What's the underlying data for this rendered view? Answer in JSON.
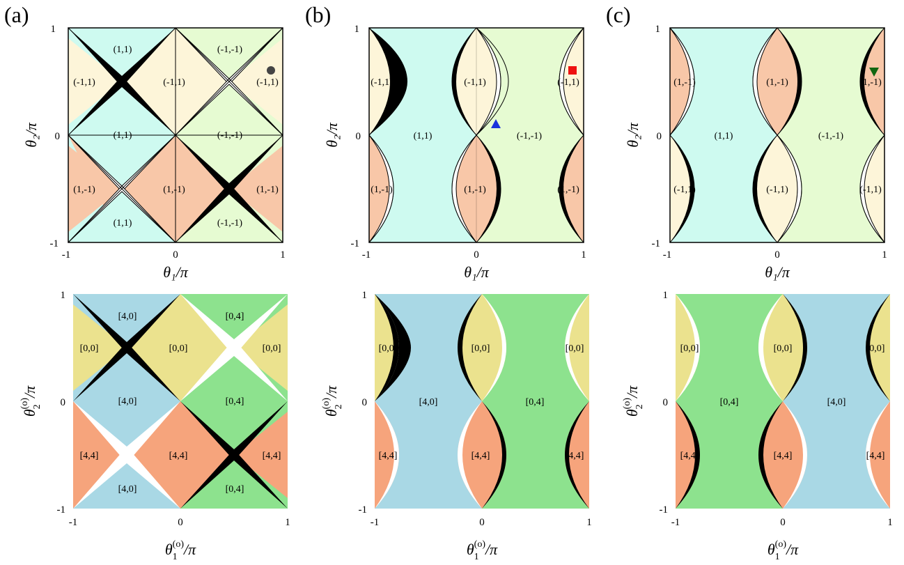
{
  "colors": {
    "cyan": "#cefaf0",
    "green_light": "#e6fbd2",
    "yellow_light": "#fdf5d9",
    "salmon_light": "#f8c7a8",
    "blue": "#a9d8e5",
    "green": "#8de28e",
    "yellow": "#ebe28e",
    "salmon": "#f6a47c",
    "black": "#000000",
    "white": "#ffffff"
  },
  "panel_letters": [
    "(a)",
    "(b)",
    "(c)"
  ],
  "ticks": {
    "neg": "-1",
    "zero": "0",
    "pos": "1"
  },
  "axis_labels": {
    "top_x": "θ₁/π",
    "top_y": "θ₂/π",
    "bottom_x_base": "θ",
    "bottom_x_sub": "1",
    "bottom_y_base": "θ",
    "bottom_y_sub": "2",
    "sup": "(o)",
    "over_pi": "/π"
  },
  "top_labels": {
    "a": {
      "row1_mid": "(1,1)",
      "row1_right": "(-1,-1)",
      "row2_left": "(-1,1)",
      "row2_mid": "(-1,1)",
      "row2_right": "(-1,1)",
      "row3_mid": "(1,1)",
      "row3_right": "(-1,-1)",
      "row4_left": "(1,-1)",
      "row4_mid": "(1,-1)",
      "row4_right": "(1,-1)",
      "row5_mid": "(1,1)",
      "row5_right": "(-1,-1)"
    },
    "b": {
      "row2_left": "(-1,1)",
      "row2_mid": "(-1,1)",
      "row2_right": "(-1,1)",
      "mid_left": "(1,1)",
      "mid_right": "(-1,-1)",
      "row4_left": "(1,-1)",
      "row4_mid": "(1,-1)",
      "row4_right": "(1,-1)"
    },
    "c": {
      "row2_left": "(1,-1)",
      "row2_mid": "(1,-1)",
      "row2_right": "(1,-1)",
      "mid_left": "(1,1)",
      "mid_right": "(-1,-1)",
      "row4_left": "(-1,1)",
      "row4_mid": "(-1,1)",
      "row4_right": "(-1,1)"
    }
  },
  "bottom_labels": {
    "a": {
      "r1_left": "[4,0]",
      "r1_right": "[0,4]",
      "r2_1": "[0,0]",
      "r2_2": "[0,0]",
      "r2_3": "[0,0]",
      "r3_left": "[4,0]",
      "r3_right": "[0,4]",
      "r4_1": "[4,4]",
      "r4_2": "[4,4]",
      "r4_3": "[4,4]",
      "r5_left": "[4,0]",
      "r5_right": "[0,4]"
    },
    "b": {
      "r2_1": "[0,0]",
      "r2_2": "[0,0]",
      "r2_3": "[0,0]",
      "mid_left": "[4,0]",
      "mid_right": "[0,4]",
      "r4_1": "[4,4]",
      "r4_2": "[4,4]",
      "r4_3": "[4,4]"
    },
    "c": {
      "r2_1": "[0,0]",
      "r2_2": "[0,0]",
      "r2_3": "[0,0]",
      "mid_left": "[0,4]",
      "mid_right": "[4,0]",
      "r4_1": "[4,4]",
      "r4_2": "[4,4]",
      "r4_3": "[4,4]"
    }
  },
  "markers": [
    {
      "panel": "a",
      "shape": "circle",
      "color": "#444444"
    },
    {
      "panel": "b",
      "shape": "square",
      "color": "#ee1111"
    },
    {
      "panel": "b",
      "shape": "triangle-up",
      "color": "#1a33dd"
    },
    {
      "panel": "c",
      "shape": "triangle-down",
      "color": "#116611"
    }
  ]
}
